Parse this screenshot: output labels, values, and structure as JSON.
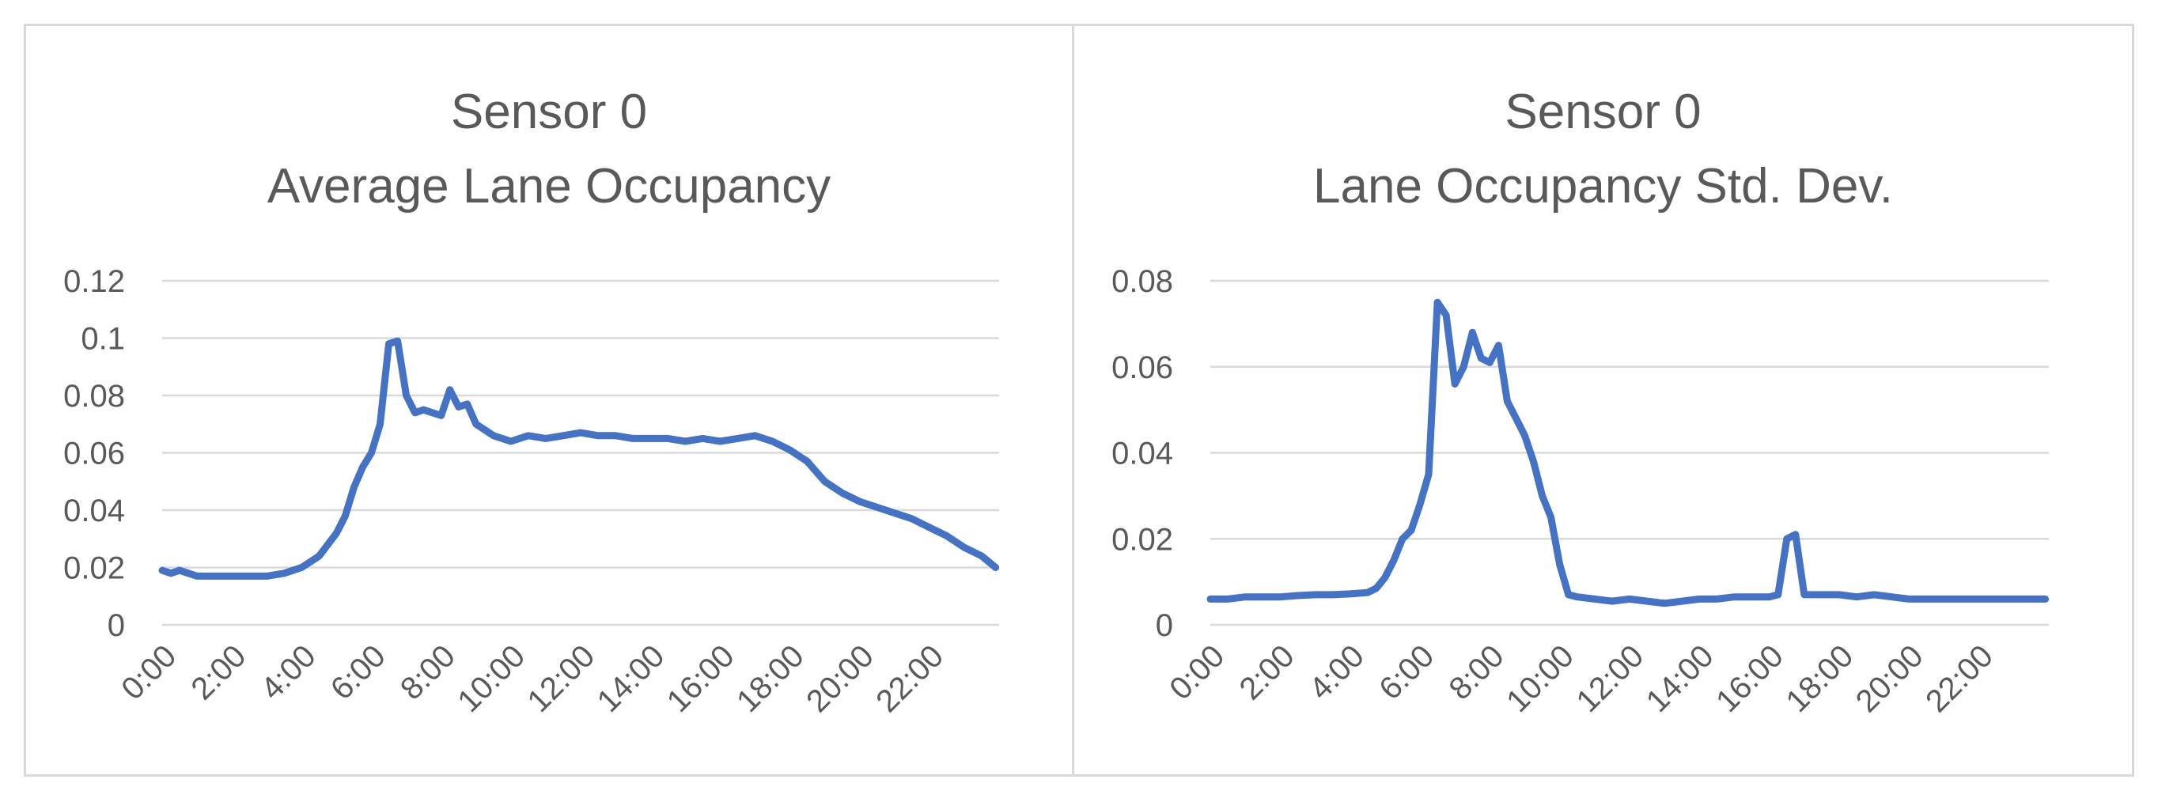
{
  "chart_data": [
    {
      "type": "line",
      "title": "Sensor 0",
      "subtitle": "Average Lane Occupancy",
      "xlabel": "",
      "ylabel": "",
      "ylim": [
        0,
        0.12
      ],
      "yticks": [
        "0",
        "0.02",
        "0.04",
        "0.06",
        "0.08",
        "0.1",
        "0.12"
      ],
      "xticks": [
        "0:00",
        "2:00",
        "4:00",
        "6:00",
        "8:00",
        "10:00",
        "12:00",
        "14:00",
        "16:00",
        "18:00",
        "20:00",
        "22:00"
      ],
      "grid": true,
      "color": "#4472C4",
      "series": [
        {
          "x": [
            0,
            0.25,
            0.5,
            0.75,
            1,
            1.5,
            2,
            2.5,
            3,
            3.5,
            4,
            4.25,
            4.5,
            4.75,
            5,
            5.25,
            5.5,
            5.75,
            6,
            6.25,
            6.5,
            6.75,
            7,
            7.25,
            7.5,
            7.75,
            8,
            8.25,
            8.5,
            8.75,
            9,
            9.5,
            10,
            10.5,
            11,
            11.5,
            12,
            12.5,
            13,
            13.5,
            14,
            14.5,
            15,
            15.5,
            16,
            16.5,
            17,
            17.5,
            18,
            18.5,
            19,
            19.5,
            20,
            20.5,
            21,
            21.5,
            22,
            22.5,
            23,
            23.5,
            23.9
          ],
          "y": [
            0.019,
            0.018,
            0.019,
            0.018,
            0.017,
            0.017,
            0.017,
            0.017,
            0.017,
            0.018,
            0.02,
            0.022,
            0.024,
            0.028,
            0.032,
            0.038,
            0.048,
            0.055,
            0.06,
            0.07,
            0.098,
            0.099,
            0.08,
            0.074,
            0.075,
            0.074,
            0.073,
            0.082,
            0.076,
            0.077,
            0.07,
            0.066,
            0.064,
            0.066,
            0.065,
            0.066,
            0.067,
            0.066,
            0.066,
            0.065,
            0.065,
            0.065,
            0.064,
            0.065,
            0.064,
            0.065,
            0.066,
            0.064,
            0.061,
            0.057,
            0.05,
            0.046,
            0.043,
            0.041,
            0.039,
            0.037,
            0.034,
            0.031,
            0.027,
            0.024,
            0.02
          ]
        }
      ]
    },
    {
      "type": "line",
      "title": "Sensor 0",
      "subtitle": "Lane Occupancy Std. Dev.",
      "xlabel": "",
      "ylabel": "",
      "ylim": [
        0,
        0.08
      ],
      "yticks": [
        "0",
        "0.02",
        "0.04",
        "0.06",
        "0.08"
      ],
      "xticks": [
        "0:00",
        "2:00",
        "4:00",
        "6:00",
        "8:00",
        "10:00",
        "12:00",
        "14:00",
        "16:00",
        "18:00",
        "20:00",
        "22:00"
      ],
      "grid": true,
      "color": "#4472C4",
      "series": [
        {
          "x": [
            0,
            0.5,
            1,
            1.5,
            2,
            2.5,
            3,
            3.5,
            4,
            4.5,
            4.75,
            5,
            5.25,
            5.5,
            5.75,
            6,
            6.25,
            6.5,
            6.75,
            7,
            7.25,
            7.5,
            7.75,
            8,
            8.25,
            8.5,
            8.75,
            9,
            9.25,
            9.5,
            9.75,
            10,
            10.25,
            10.5,
            11,
            11.5,
            12,
            12.5,
            13,
            13.5,
            14,
            14.5,
            15,
            15.5,
            16,
            16.25,
            16.5,
            16.75,
            17,
            17.5,
            18,
            18.5,
            19,
            19.5,
            20,
            20.5,
            21,
            21.5,
            22,
            22.5,
            23,
            23.5,
            23.9
          ],
          "y": [
            0.006,
            0.006,
            0.0065,
            0.0065,
            0.0065,
            0.0068,
            0.007,
            0.007,
            0.0072,
            0.0075,
            0.0085,
            0.011,
            0.015,
            0.02,
            0.022,
            0.028,
            0.035,
            0.075,
            0.072,
            0.056,
            0.06,
            0.068,
            0.062,
            0.061,
            0.065,
            0.052,
            0.048,
            0.044,
            0.038,
            0.03,
            0.025,
            0.014,
            0.007,
            0.0065,
            0.006,
            0.0055,
            0.006,
            0.0055,
            0.005,
            0.0055,
            0.006,
            0.006,
            0.0065,
            0.0065,
            0.0065,
            0.007,
            0.02,
            0.021,
            0.007,
            0.007,
            0.007,
            0.0065,
            0.007,
            0.0065,
            0.006,
            0.006,
            0.006,
            0.006,
            0.006,
            0.006,
            0.006,
            0.006,
            0.006
          ]
        }
      ]
    }
  ]
}
